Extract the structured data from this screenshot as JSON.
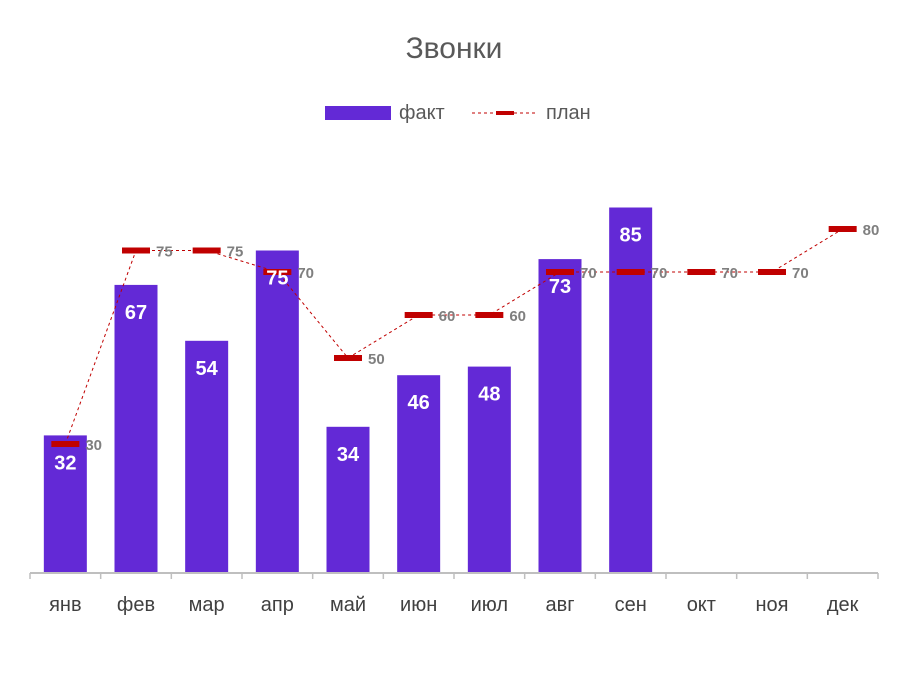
{
  "chart_data": {
    "type": "bar",
    "title": "Звонки",
    "categories": [
      "янв",
      "фев",
      "мар",
      "апр",
      "май",
      "июн",
      "июл",
      "авг",
      "сен",
      "окт",
      "ноя",
      "дек"
    ],
    "series": [
      {
        "name": "факт",
        "type": "bar",
        "color": "#6329d6",
        "values": [
          32,
          67,
          54,
          75,
          34,
          46,
          48,
          73,
          85,
          null,
          null,
          null
        ]
      },
      {
        "name": "план",
        "type": "line",
        "line_style": "dashed",
        "marker": "dash",
        "color": "#c00000",
        "values": [
          30,
          75,
          75,
          70,
          50,
          60,
          60,
          70,
          70,
          70,
          70,
          80
        ]
      }
    ],
    "ylim": [
      0,
      100
    ],
    "grid": false,
    "legend_position": "top",
    "xlabel": "",
    "ylabel": ""
  }
}
